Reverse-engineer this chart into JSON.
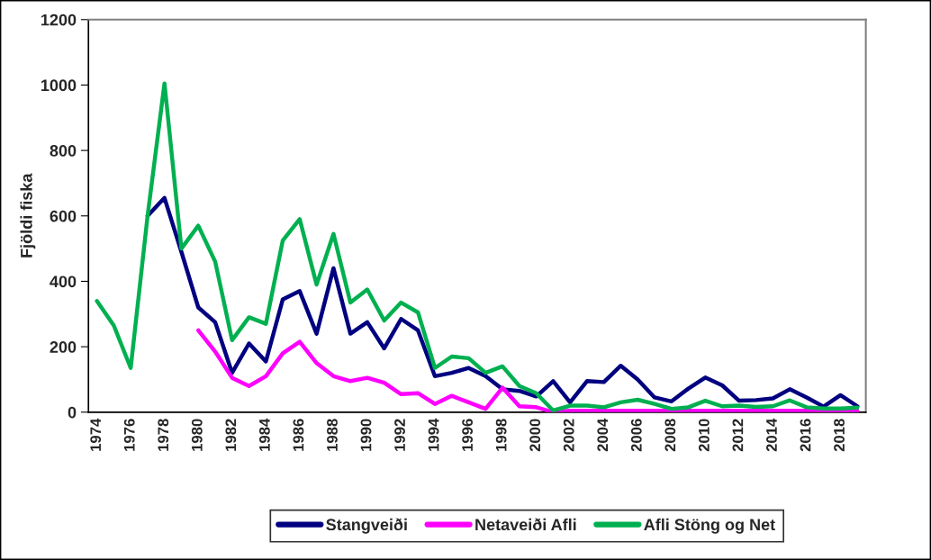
{
  "chart_data": {
    "type": "line",
    "ylabel": "Fjöldi fiska",
    "categories": [
      "1974",
      null,
      "1976",
      null,
      "1978",
      null,
      "1980",
      null,
      "1982",
      null,
      "1984",
      null,
      "1986",
      null,
      "1988",
      null,
      "1990",
      null,
      "1992",
      null,
      "1994",
      null,
      "1996",
      null,
      "1998",
      null,
      "2000",
      null,
      "2002",
      null,
      "2004",
      null,
      "2006",
      null,
      "2008",
      null,
      "2010",
      null,
      "2012",
      null,
      "2014",
      null,
      "2016",
      null,
      "2018",
      null
    ],
    "ylim": [
      0,
      1200
    ],
    "yticks": [
      0,
      200,
      400,
      600,
      800,
      1000,
      1200
    ],
    "grid": false,
    "legend": "bottom",
    "line_style": "solid",
    "series": [
      {
        "name": "Stangveiði",
        "color": "#000080",
        "values": [
          null,
          null,
          null,
          600,
          655,
          490,
          320,
          275,
          120,
          210,
          155,
          345,
          370,
          240,
          440,
          240,
          275,
          195,
          285,
          250,
          110,
          120,
          135,
          110,
          70,
          65,
          48,
          95,
          30,
          95,
          92,
          142,
          100,
          45,
          33,
          72,
          106,
          82,
          35,
          37,
          42,
          70,
          45,
          17,
          52,
          18
        ]
      },
      {
        "name": "Netaveiði Afli",
        "color": "#ff00ff",
        "values": [
          null,
          null,
          null,
          null,
          null,
          null,
          250,
          185,
          105,
          80,
          110,
          180,
          215,
          150,
          110,
          95,
          105,
          90,
          55,
          58,
          25,
          50,
          30,
          10,
          75,
          18,
          15,
          0,
          4,
          4,
          4,
          4,
          4,
          4,
          4,
          4,
          4,
          4,
          4,
          4,
          4,
          4,
          4,
          4,
          4,
          4
        ]
      },
      {
        "name": "Afli Stöng og Net",
        "color": "#00b050",
        "values": [
          340,
          265,
          135,
          600,
          1005,
          500,
          570,
          460,
          220,
          290,
          270,
          525,
          590,
          390,
          545,
          335,
          375,
          280,
          335,
          305,
          135,
          170,
          165,
          120,
          140,
          80,
          58,
          5,
          20,
          20,
          15,
          30,
          38,
          25,
          10,
          15,
          35,
          18,
          20,
          16,
          18,
          36,
          15,
          11,
          11,
          14
        ]
      }
    ]
  }
}
